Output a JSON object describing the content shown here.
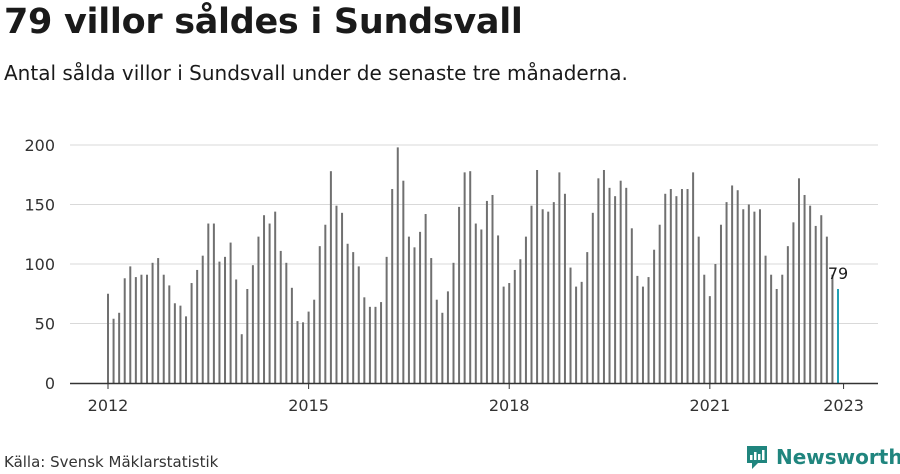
{
  "title": "79 villor såldes i Sundsvall",
  "subtitle": "Antal sålda villor i Sundsvall under de senaste tre månaderna.",
  "source": "Källa: Svensk Mäklarstatistik",
  "brand": {
    "name": "Newsworthy",
    "icon": "newsworthy-logo-icon",
    "color": "#20857e"
  },
  "colors": {
    "bar": "#707070",
    "highlight": "#20a0b4",
    "grid": "#d9d9d9",
    "axis": "#333333"
  },
  "chart_data": {
    "type": "bar",
    "ylim": [
      0,
      200
    ],
    "yticks": [
      0,
      50,
      100,
      150,
      200
    ],
    "xtick_labels": [
      "2012",
      "2015",
      "2018",
      "2021",
      "2023"
    ],
    "start": "2012-01",
    "end": "2023-01",
    "grid": true,
    "highlight_label": "79",
    "values": [
      75,
      54,
      59,
      88,
      98,
      89,
      91,
      91,
      101,
      105,
      91,
      82,
      67,
      65,
      56,
      84,
      95,
      107,
      134,
      134,
      102,
      106,
      118,
      87,
      41,
      79,
      99,
      123,
      141,
      134,
      144,
      111,
      101,
      80,
      52,
      51,
      60,
      70,
      115,
      133,
      178,
      149,
      143,
      117,
      110,
      98,
      72,
      64,
      64,
      68,
      106,
      163,
      198,
      170,
      123,
      114,
      127,
      142,
      105,
      70,
      59,
      77,
      101,
      148,
      177,
      178,
      134,
      129,
      153,
      158,
      124,
      81,
      84,
      95,
      104,
      123,
      149,
      179,
      146,
      144,
      152,
      177,
      159,
      97,
      81,
      85,
      110,
      143,
      172,
      179,
      164,
      157,
      170,
      164,
      130,
      90,
      81,
      89,
      112,
      133,
      159,
      163,
      157,
      163,
      163,
      177,
      123,
      91,
      73,
      100,
      133,
      152,
      166,
      162,
      146,
      150,
      144,
      146,
      107,
      91,
      79,
      91,
      115,
      135,
      172,
      158,
      149,
      132,
      141,
      123,
      91,
      79
    ]
  }
}
